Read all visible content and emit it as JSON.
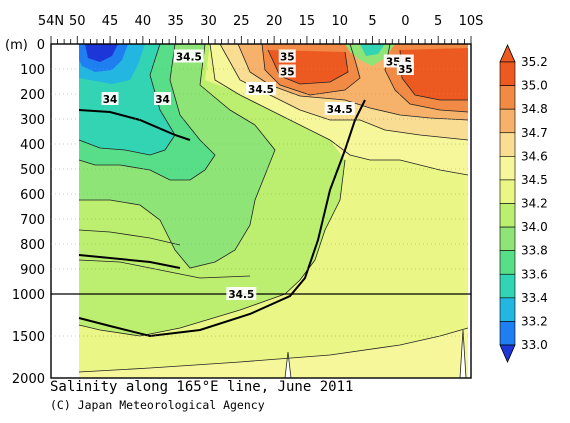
{
  "chart_data": {
    "type": "heatmap",
    "title": "Salinity along 165°E line, June 2011",
    "credit": "(C) Japan Meteorological Agency",
    "y_unit_label": "(m)",
    "x_ticks": [
      "54N",
      "50",
      "45",
      "40",
      "35",
      "30",
      "25",
      "20",
      "15",
      "10",
      "5",
      "0",
      "5",
      "10S"
    ],
    "x_tick_values": [
      54,
      50,
      45,
      40,
      35,
      30,
      25,
      20,
      15,
      10,
      5,
      0,
      -5,
      -10
    ],
    "x_range": [
      54,
      -10
    ],
    "y_ticks_upper": [
      0,
      100,
      200,
      300,
      400,
      500,
      600,
      700,
      800,
      900,
      1000
    ],
    "y_ticks_lower": [
      1000,
      1500,
      2000
    ],
    "y_break": 1000,
    "data_x_range": [
      50,
      -8
    ],
    "colorbar_levels": [
      35.2,
      35.0,
      34.8,
      34.7,
      34.6,
      34.5,
      34.2,
      34.0,
      33.8,
      33.6,
      33.4,
      33.2,
      33.0
    ],
    "colorbar_colors": [
      "#ec5a22",
      "#f08a44",
      "#f6b26b",
      "#f9dd93",
      "#f6f79a",
      "#eaf786",
      "#bcee70",
      "#8fe478",
      "#58dd88",
      "#32d4b4",
      "#22b6e0",
      "#1f7ef0",
      "#1d36d8"
    ],
    "contour_labels": [
      {
        "text": "34.5",
        "lat": 33,
        "depth": 50
      },
      {
        "text": "35",
        "lat": 18,
        "depth": 50
      },
      {
        "text": "35.5",
        "lat": 1,
        "depth": 70
      },
      {
        "text": "35",
        "lat": 18,
        "depth": 110
      },
      {
        "text": "35",
        "lat": 0,
        "depth": 100
      },
      {
        "text": "34.5",
        "lat": 22,
        "depth": 180
      },
      {
        "text": "34",
        "lat": 45,
        "depth": 220
      },
      {
        "text": "34",
        "lat": 37,
        "depth": 220
      },
      {
        "text": "34.5",
        "lat": 10,
        "depth": 260
      },
      {
        "text": "34.5",
        "lat": 25,
        "depth": 1000
      }
    ],
    "y_scale": "piecewise linear: 0-1000 m upper panel, 1000-2000 m compressed lower panel"
  }
}
